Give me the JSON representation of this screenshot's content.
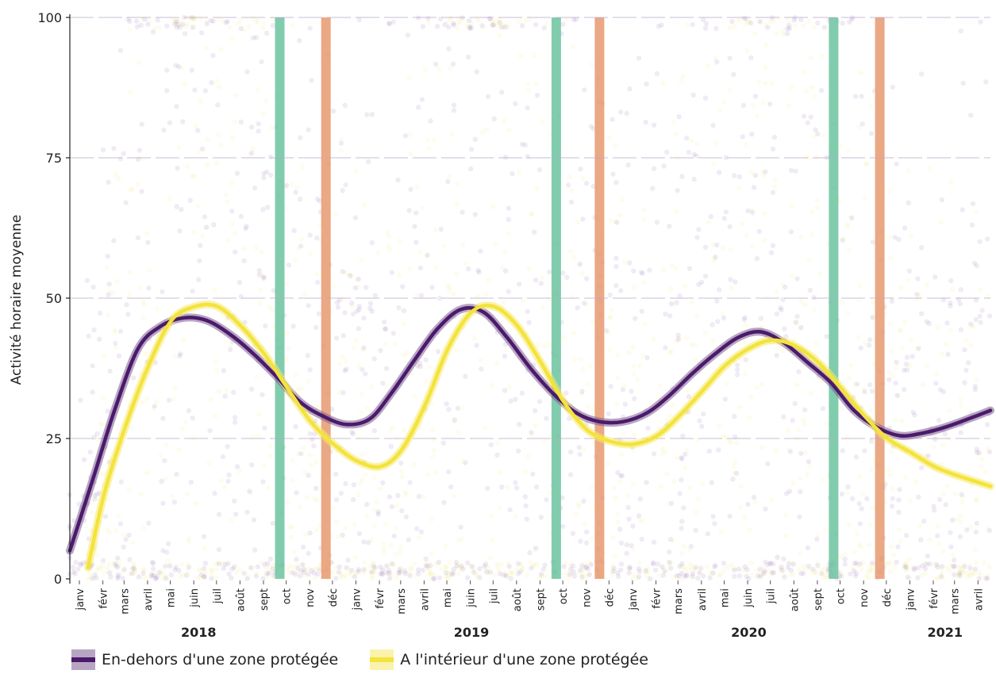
{
  "chart_data": {
    "type": "line",
    "ylabel": "Activité horaire moyenne",
    "xlabel": "",
    "ylim": [
      0,
      100
    ],
    "yticks": [
      0,
      25,
      50,
      75,
      100
    ],
    "x_range": [
      "2018-01-01",
      "2021-04-30"
    ],
    "month_labels": [
      "janv",
      "févr",
      "mars",
      "avril",
      "mai",
      "juin",
      "juil",
      "août",
      "sept",
      "oct",
      "nov",
      "déc"
    ],
    "month_ticks_end": "2021-04-01",
    "years": [
      {
        "label": "2018",
        "date": "2018-06-20"
      },
      {
        "label": "2019",
        "date": "2019-06-15"
      },
      {
        "label": "2020",
        "date": "2020-06-15"
      },
      {
        "label": "2021",
        "date": "2021-03-01"
      }
    ],
    "vertical_bands": [
      {
        "date": "2018-10-05",
        "color": "#6cc3a0"
      },
      {
        "date": "2018-12-05",
        "color": "#e8996e"
      },
      {
        "date": "2019-10-05",
        "color": "#6cc3a0"
      },
      {
        "date": "2019-12-01",
        "color": "#e8996e"
      },
      {
        "date": "2020-10-05",
        "color": "#6cc3a0"
      },
      {
        "date": "2020-12-05",
        "color": "#e8996e"
      }
    ],
    "series": [
      {
        "name": "En-dehors d'une zone protégée",
        "color": "#4a1a6b",
        "band_color": "#7d5b94",
        "points": [
          [
            "2018-01-01",
            5
          ],
          [
            "2018-02-01",
            18
          ],
          [
            "2018-03-01",
            30
          ],
          [
            "2018-04-01",
            41
          ],
          [
            "2018-05-01",
            45
          ],
          [
            "2018-06-01",
            46.5
          ],
          [
            "2018-07-01",
            46
          ],
          [
            "2018-08-01",
            43.5
          ],
          [
            "2018-09-01",
            40
          ],
          [
            "2018-10-01",
            36
          ],
          [
            "2018-11-01",
            31.5
          ],
          [
            "2018-12-01",
            29
          ],
          [
            "2019-01-01",
            27.5
          ],
          [
            "2019-02-01",
            28.5
          ],
          [
            "2019-03-01",
            33
          ],
          [
            "2019-04-01",
            39
          ],
          [
            "2019-05-01",
            44.5
          ],
          [
            "2019-06-01",
            48
          ],
          [
            "2019-07-01",
            47.5
          ],
          [
            "2019-08-01",
            43
          ],
          [
            "2019-09-01",
            37.5
          ],
          [
            "2019-10-01",
            33
          ],
          [
            "2019-11-01",
            29.5
          ],
          [
            "2019-12-01",
            28
          ],
          [
            "2020-01-01",
            28
          ],
          [
            "2020-02-01",
            29.5
          ],
          [
            "2020-03-01",
            32.5
          ],
          [
            "2020-04-01",
            36.5
          ],
          [
            "2020-05-01",
            40
          ],
          [
            "2020-06-01",
            43
          ],
          [
            "2020-07-01",
            44
          ],
          [
            "2020-08-01",
            42
          ],
          [
            "2020-09-01",
            38.5
          ],
          [
            "2020-10-01",
            35
          ],
          [
            "2020-11-01",
            30
          ],
          [
            "2020-12-01",
            27
          ],
          [
            "2021-01-01",
            25.5
          ],
          [
            "2021-02-01",
            26
          ],
          [
            "2021-03-01",
            27
          ],
          [
            "2021-04-01",
            28.5
          ],
          [
            "2021-04-30",
            30
          ]
        ]
      },
      {
        "name": "A l'intérieur d'une zone protégée",
        "color": "#f3e33b",
        "band_color": "#f5ea6a",
        "points": [
          [
            "2018-01-25",
            2
          ],
          [
            "2018-02-15",
            15
          ],
          [
            "2018-03-15",
            27
          ],
          [
            "2018-04-15",
            38
          ],
          [
            "2018-05-15",
            46
          ],
          [
            "2018-06-15",
            48.5
          ],
          [
            "2018-07-15",
            48.5
          ],
          [
            "2018-08-15",
            45
          ],
          [
            "2018-09-15",
            40
          ],
          [
            "2018-10-15",
            34
          ],
          [
            "2018-11-15",
            28
          ],
          [
            "2018-12-15",
            24
          ],
          [
            "2019-01-15",
            21
          ],
          [
            "2019-02-15",
            20
          ],
          [
            "2019-03-15",
            23
          ],
          [
            "2019-04-15",
            31
          ],
          [
            "2019-05-15",
            41
          ],
          [
            "2019-06-15",
            47.5
          ],
          [
            "2019-07-15",
            48.5
          ],
          [
            "2019-08-15",
            45
          ],
          [
            "2019-09-15",
            38.5
          ],
          [
            "2019-10-15",
            31.5
          ],
          [
            "2019-11-15",
            26.5
          ],
          [
            "2019-12-15",
            24.5
          ],
          [
            "2020-01-15",
            24
          ],
          [
            "2020-02-15",
            25.5
          ],
          [
            "2020-03-15",
            29
          ],
          [
            "2020-04-15",
            33.5
          ],
          [
            "2020-05-15",
            38
          ],
          [
            "2020-06-15",
            41
          ],
          [
            "2020-07-15",
            42.5
          ],
          [
            "2020-08-15",
            41.5
          ],
          [
            "2020-09-15",
            38.5
          ],
          [
            "2020-10-15",
            34
          ],
          [
            "2020-11-15",
            29
          ],
          [
            "2020-12-15",
            25
          ],
          [
            "2021-01-15",
            22.5
          ],
          [
            "2021-02-15",
            20
          ],
          [
            "2021-03-15",
            18.5
          ],
          [
            "2021-04-30",
            16.5
          ]
        ]
      }
    ]
  }
}
